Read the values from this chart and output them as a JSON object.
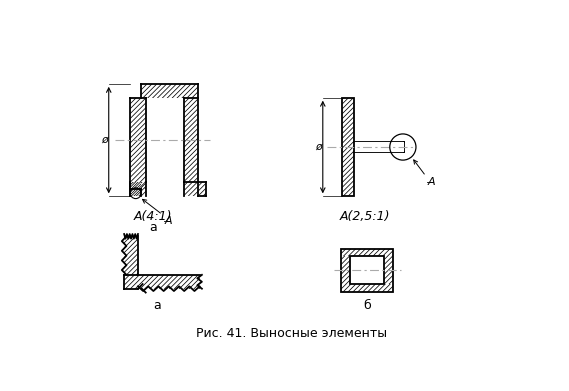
{
  "title": "Рис. 41. Выносные элементы",
  "label_a": "а",
  "label_b": "б",
  "label_A1": "A(4:1)",
  "label_A2": "A(2,5:1)",
  "bg_color": "#ffffff",
  "line_color": "#000000",
  "centerline_color": "#aaaaaa",
  "lw": 1.3,
  "lw_thin": 0.7,
  "lw_hatch": 0.55
}
